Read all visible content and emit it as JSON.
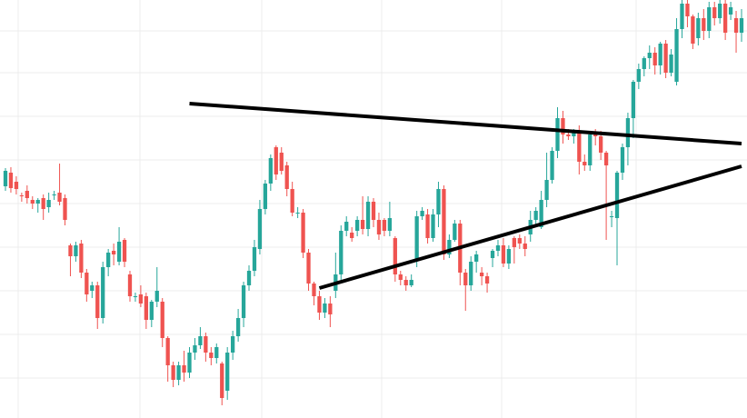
{
  "chart_data": {
    "type": "candlestick",
    "x_index_range": [
      0,
      136
    ],
    "ylim": [
      0,
      460
    ],
    "grid": true,
    "colors": {
      "background": "#ffffff",
      "grid": "#ececec",
      "up": "#26a69a",
      "down": "#ef5350",
      "trendline": "#000000"
    },
    "candles": [
      [
        0,
        255,
        272,
        250,
        275
      ],
      [
        1,
        270,
        253,
        248,
        276
      ],
      [
        2,
        260,
        252,
        246,
        266
      ],
      [
        3,
        245,
        244,
        238,
        248
      ],
      [
        4,
        250,
        242,
        236,
        256
      ],
      [
        5,
        240,
        236,
        230,
        244
      ],
      [
        6,
        236,
        240,
        226,
        242
      ],
      [
        7,
        242,
        230,
        218,
        246
      ],
      [
        8,
        232,
        240,
        226,
        248
      ],
      [
        9,
        246,
        246,
        240,
        250
      ],
      [
        10,
        248,
        238,
        234,
        280
      ],
      [
        11,
        242,
        218,
        212,
        246
      ],
      [
        12,
        190,
        178,
        156,
        192
      ],
      [
        13,
        178,
        190,
        172,
        194
      ],
      [
        14,
        192,
        160,
        154,
        196
      ],
      [
        15,
        160,
        136,
        128,
        164
      ],
      [
        16,
        140,
        146,
        132,
        150
      ],
      [
        17,
        146,
        110,
        98,
        150
      ],
      [
        18,
        110,
        166,
        104,
        172
      ],
      [
        19,
        166,
        182,
        156,
        186
      ],
      [
        20,
        184,
        180,
        168,
        192
      ],
      [
        21,
        172,
        194,
        168,
        210
      ],
      [
        22,
        196,
        172,
        166,
        198
      ],
      [
        23,
        158,
        134,
        128,
        162
      ],
      [
        24,
        134,
        134,
        128,
        138
      ],
      [
        25,
        136,
        126,
        122,
        146
      ],
      [
        26,
        134,
        108,
        98,
        138
      ],
      [
        27,
        108,
        128,
        100,
        130
      ],
      [
        28,
        128,
        140,
        122,
        166
      ],
      [
        29,
        128,
        88,
        78,
        132
      ],
      [
        30,
        88,
        58,
        40,
        90
      ],
      [
        31,
        58,
        42,
        34,
        62
      ],
      [
        32,
        42,
        58,
        36,
        62
      ],
      [
        33,
        58,
        50,
        40,
        74
      ],
      [
        34,
        50,
        72,
        44,
        78
      ],
      [
        35,
        72,
        80,
        64,
        88
      ],
      [
        36,
        80,
        90,
        76,
        100
      ],
      [
        37,
        90,
        72,
        62,
        94
      ],
      [
        38,
        72,
        66,
        58,
        78
      ],
      [
        39,
        66,
        78,
        60,
        82
      ],
      [
        40,
        60,
        22,
        14,
        62
      ],
      [
        41,
        30,
        72,
        20,
        78
      ],
      [
        42,
        72,
        90,
        64,
        96
      ],
      [
        43,
        90,
        110,
        84,
        120
      ],
      [
        44,
        110,
        146,
        100,
        150
      ],
      [
        45,
        146,
        162,
        140,
        168
      ],
      [
        46,
        162,
        188,
        156,
        196
      ],
      [
        47,
        186,
        230,
        180,
        240
      ],
      [
        48,
        230,
        258,
        224,
        262
      ],
      [
        49,
        258,
        286,
        250,
        290
      ],
      [
        50,
        298,
        268,
        262,
        300
      ],
      [
        51,
        292,
        272,
        268,
        298
      ],
      [
        52,
        278,
        252,
        244,
        282
      ],
      [
        53,
        252,
        226,
        222,
        260
      ],
      [
        54,
        226,
        226,
        220,
        232
      ],
      [
        55,
        226,
        182,
        176,
        230
      ],
      [
        56,
        182,
        148,
        140,
        186
      ],
      [
        57,
        148,
        134,
        124,
        150
      ],
      [
        58,
        134,
        116,
        108,
        140
      ],
      [
        59,
        116,
        126,
        110,
        132
      ],
      [
        60,
        126,
        114,
        100,
        134
      ],
      [
        61,
        140,
        158,
        132,
        182
      ],
      [
        62,
        158,
        206,
        150,
        212
      ],
      [
        63,
        206,
        216,
        200,
        222
      ],
      [
        64,
        204,
        198,
        194,
        210
      ],
      [
        65,
        206,
        218,
        200,
        222
      ],
      [
        66,
        218,
        208,
        202,
        244
      ],
      [
        67,
        208,
        238,
        200,
        244
      ],
      [
        68,
        238,
        218,
        210,
        242
      ],
      [
        69,
        218,
        202,
        196,
        226
      ],
      [
        70,
        218,
        206,
        200,
        220
      ],
      [
        71,
        206,
        220,
        200,
        238
      ],
      [
        72,
        198,
        158,
        150,
        200
      ],
      [
        73,
        158,
        152,
        146,
        162
      ],
      [
        74,
        152,
        146,
        140,
        156
      ],
      [
        75,
        146,
        152,
        144,
        158
      ],
      [
        76,
        174,
        222,
        166,
        228
      ],
      [
        77,
        222,
        228,
        218,
        232
      ],
      [
        78,
        224,
        198,
        192,
        230
      ],
      [
        79,
        198,
        224,
        194,
        230
      ],
      [
        80,
        224,
        252,
        210,
        260
      ],
      [
        81,
        252,
        180,
        174,
        256
      ],
      [
        82,
        180,
        196,
        176,
        202
      ],
      [
        83,
        196,
        214,
        194,
        218
      ],
      [
        84,
        214,
        160,
        146,
        218
      ],
      [
        85,
        160,
        146,
        118,
        164
      ],
      [
        86,
        146,
        172,
        140,
        178
      ],
      [
        87,
        172,
        180,
        160,
        184
      ],
      [
        88,
        160,
        156,
        146,
        166
      ],
      [
        89,
        156,
        148,
        138,
        160
      ],
      [
        90,
        176,
        184,
        166,
        186
      ],
      [
        91,
        184,
        190,
        178,
        196
      ],
      [
        92,
        190,
        170,
        166,
        198
      ],
      [
        93,
        170,
        186,
        164,
        190
      ],
      [
        94,
        198,
        188,
        170,
        200
      ],
      [
        95,
        198,
        192,
        186,
        202
      ],
      [
        96,
        192,
        186,
        178,
        200
      ],
      [
        97,
        202,
        218,
        194,
        228
      ],
      [
        98,
        218,
        228,
        210,
        232
      ],
      [
        99,
        210,
        240,
        208,
        250
      ],
      [
        100,
        240,
        262,
        232,
        292
      ],
      [
        101,
        262,
        294,
        258,
        298
      ],
      [
        102,
        294,
        330,
        286,
        342
      ],
      [
        103,
        330,
        312,
        302,
        338
      ],
      [
        104,
        312,
        310,
        306,
        318
      ],
      [
        105,
        310,
        316,
        302,
        318
      ],
      [
        106,
        316,
        282,
        268,
        322
      ],
      [
        107,
        282,
        278,
        272,
        290
      ],
      [
        108,
        278,
        312,
        272,
        314
      ],
      [
        109,
        312,
        310,
        300,
        318
      ],
      [
        110,
        310,
        292,
        284,
        316
      ],
      [
        111,
        292,
        278,
        196,
        294
      ],
      [
        112,
        222,
        222,
        210,
        228
      ],
      [
        113,
        220,
        270,
        168,
        272
      ],
      [
        114,
        270,
        298,
        262,
        302
      ],
      [
        115,
        298,
        330,
        278,
        336
      ],
      [
        116,
        330,
        370,
        308,
        372
      ],
      [
        117,
        370,
        384,
        362,
        390
      ],
      [
        118,
        384,
        396,
        376,
        398
      ],
      [
        119,
        396,
        402,
        384,
        410
      ],
      [
        120,
        402,
        388,
        378,
        408
      ],
      [
        121,
        388,
        412,
        378,
        414
      ],
      [
        122,
        412,
        380,
        374,
        416
      ],
      [
        123,
        380,
        400,
        376,
        406
      ],
      [
        124,
        370,
        428,
        366,
        440
      ],
      [
        125,
        428,
        456,
        418,
        460
      ],
      [
        126,
        456,
        442,
        430,
        460
      ],
      [
        127,
        442,
        412,
        406,
        444
      ],
      [
        128,
        418,
        440,
        410,
        446
      ],
      [
        129,
        440,
        426,
        416,
        450
      ],
      [
        130,
        426,
        452,
        418,
        458
      ],
      [
        131,
        452,
        440,
        432,
        458
      ],
      [
        132,
        440,
        456,
        434,
        460
      ],
      [
        133,
        456,
        424,
        416,
        460
      ],
      [
        134,
        444,
        452,
        438,
        458
      ],
      [
        135,
        440,
        424,
        402,
        448
      ],
      [
        136,
        424,
        440,
        414,
        450
      ]
    ],
    "trendlines": [
      {
        "name": "upper-trendline",
        "x": [
          34,
          136
        ],
        "y": [
          346,
          302
        ]
      },
      {
        "name": "lower-trendline",
        "x": [
          58,
          136
        ],
        "y": [
          143,
          277
        ]
      }
    ]
  }
}
